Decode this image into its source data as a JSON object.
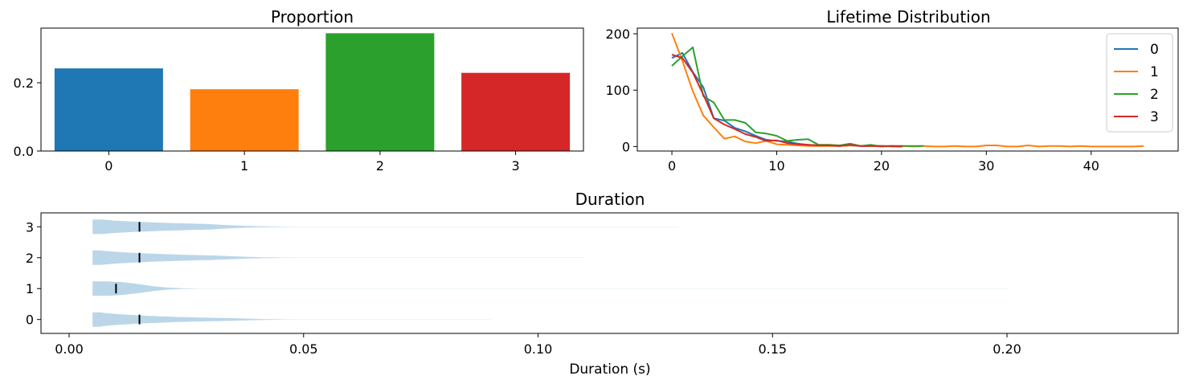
{
  "colors": {
    "series": [
      "#1f77b4",
      "#ff7f0e",
      "#2ca02c",
      "#d62728"
    ],
    "violin": "#1f77b4",
    "median": "#000000"
  },
  "chart_data": [
    {
      "type": "bar",
      "title": "Proportion",
      "categories": [
        "0",
        "1",
        "2",
        "3"
      ],
      "values": [
        0.242,
        0.181,
        0.345,
        0.229
      ],
      "ylim": [
        0,
        0.36
      ],
      "yticks": [
        0.0,
        0.2
      ],
      "ytick_labels": [
        "0.0",
        "0.2"
      ]
    },
    {
      "type": "line",
      "title": "Lifetime Distribution",
      "xlim": [
        -3.3,
        48.3
      ],
      "ylim": [
        -8,
        210
      ],
      "xticks": [
        0,
        10,
        20,
        30,
        40
      ],
      "yticks": [
        0,
        100,
        200
      ],
      "legend": {
        "placement": "top-right",
        "entries": [
          "0",
          "1",
          "2",
          "3"
        ]
      },
      "series": [
        {
          "name": "0",
          "x": [
            0,
            1,
            2,
            3,
            4,
            5,
            6,
            7,
            8,
            9,
            10,
            11,
            12,
            13,
            14,
            15,
            16,
            17,
            18,
            19,
            20,
            21,
            22
          ],
          "values": [
            157,
            166,
            132,
            105,
            50,
            46,
            33,
            27,
            19,
            12,
            10,
            9,
            5,
            3,
            2,
            2,
            1,
            2,
            1,
            1,
            1,
            0,
            0
          ]
        },
        {
          "name": "1",
          "x": [
            0,
            1,
            2,
            3,
            4,
            5,
            6,
            7,
            8,
            9,
            10,
            11,
            12,
            13,
            14,
            15,
            16,
            17,
            18,
            19,
            20,
            21,
            22,
            23,
            24,
            25,
            26,
            27,
            28,
            29,
            30,
            31,
            32,
            33,
            34,
            35,
            36,
            37,
            38,
            39,
            40,
            41,
            42,
            43,
            44,
            45
          ],
          "values": [
            201,
            152,
            98,
            55,
            34,
            14,
            18,
            9,
            6,
            10,
            4,
            3,
            2,
            1,
            1,
            1,
            1,
            2,
            1,
            1,
            0,
            1,
            1,
            0,
            1,
            0,
            0,
            1,
            0,
            0,
            2,
            2,
            0,
            0,
            2,
            0,
            1,
            1,
            0,
            1,
            0,
            0,
            0,
            0,
            0,
            1
          ]
        },
        {
          "name": "2",
          "x": [
            0,
            1,
            2,
            3,
            4,
            5,
            6,
            7,
            8,
            9,
            10,
            11,
            12,
            13,
            14,
            15,
            16,
            17,
            18,
            19,
            20,
            21,
            22,
            23,
            24
          ],
          "values": [
            143,
            160,
            176,
            89,
            78,
            47,
            47,
            42,
            25,
            23,
            19,
            10,
            12,
            13,
            3,
            3,
            2,
            5,
            1,
            3,
            0,
            1,
            1,
            1,
            1
          ]
        },
        {
          "name": "3",
          "x": [
            0,
            1,
            2,
            3,
            4,
            5,
            6,
            7,
            8,
            9,
            10,
            11,
            12,
            13,
            14,
            15,
            16,
            17,
            18,
            19,
            20,
            21,
            22
          ],
          "values": [
            163,
            157,
            131,
            92,
            50,
            39,
            31,
            22,
            17,
            10,
            11,
            6,
            4,
            3,
            2,
            2,
            1,
            3,
            1,
            1,
            1,
            1,
            0
          ]
        }
      ]
    },
    {
      "type": "violin",
      "title": "Duration",
      "xlabel": "Duration (s)",
      "orientation": "horizontal",
      "xlim": [
        -0.006,
        0.2365
      ],
      "ylim": [
        -0.45,
        3.45
      ],
      "xticks": [
        0.0,
        0.05,
        0.1,
        0.15,
        0.2
      ],
      "xtick_labels": [
        "0.00",
        "0.05",
        "0.10",
        "0.15",
        "0.20"
      ],
      "categories": [
        "0",
        "1",
        "2",
        "3"
      ],
      "series": [
        {
          "name": "0",
          "min": 0.005,
          "max": 0.09,
          "median": 0.015
        },
        {
          "name": "1",
          "min": 0.005,
          "max": 0.2,
          "median": 0.01
        },
        {
          "name": "2",
          "min": 0.005,
          "max": 0.11,
          "median": 0.015
        },
        {
          "name": "3",
          "min": 0.005,
          "max": 0.13,
          "median": 0.015
        }
      ]
    }
  ]
}
